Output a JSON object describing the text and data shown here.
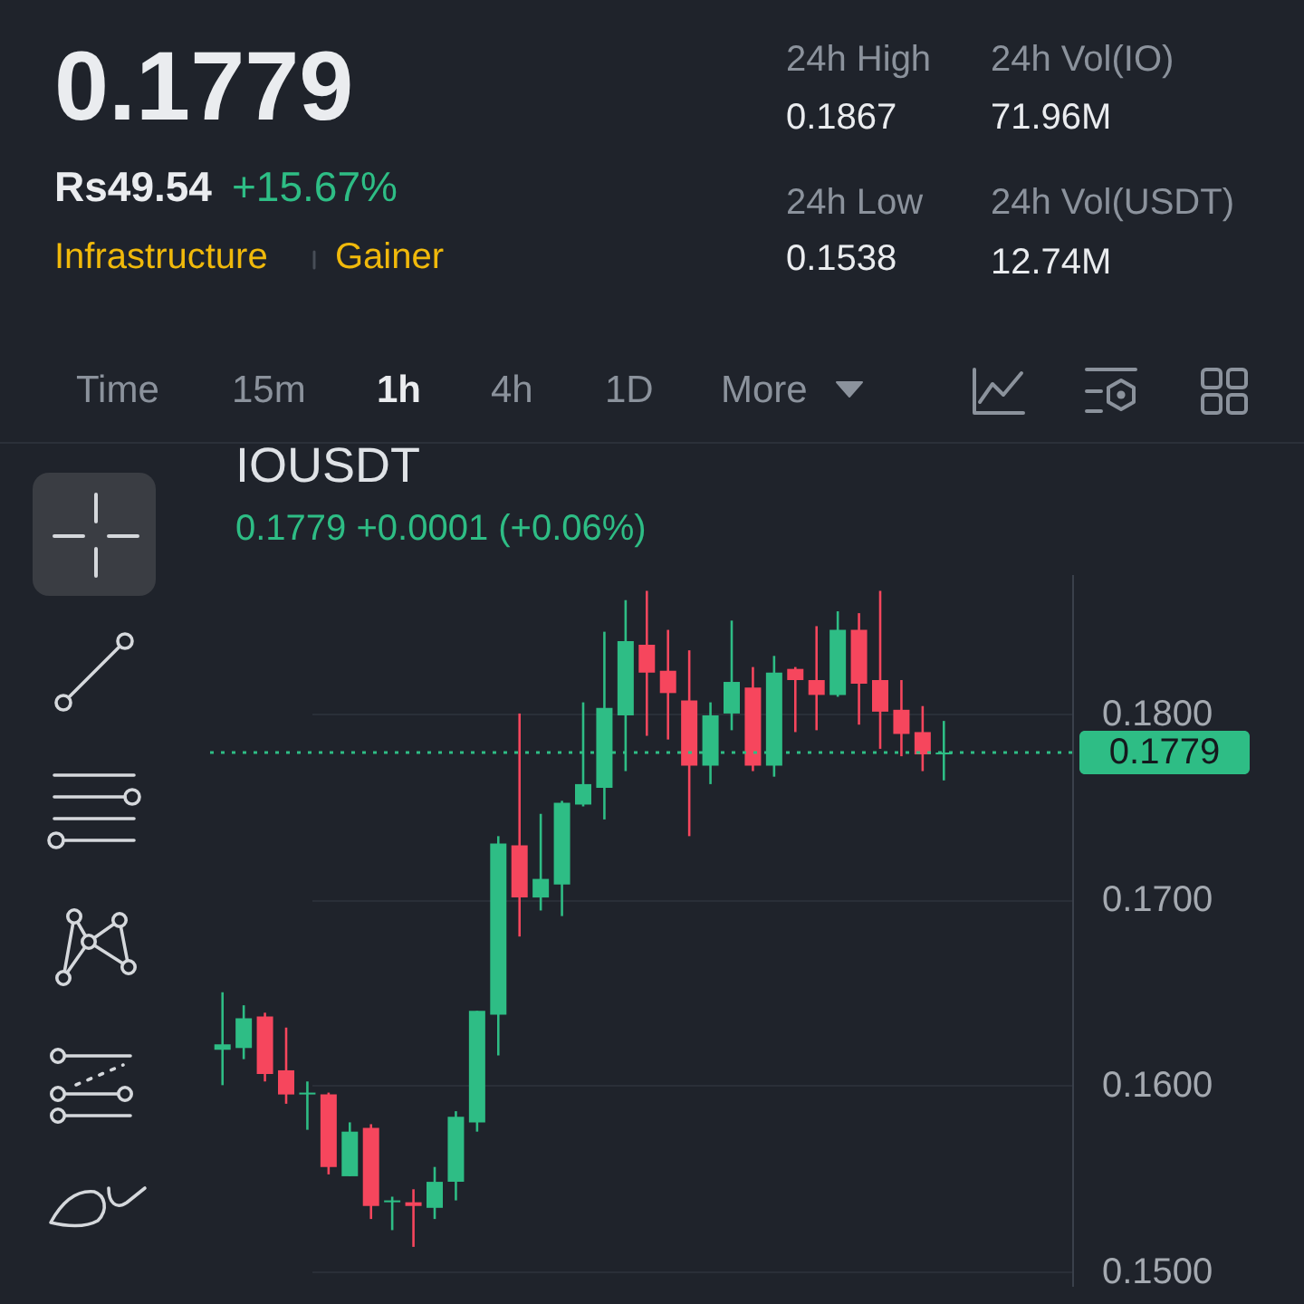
{
  "chart_data": [
    {
      "type": "other",
      "title": "0.1779",
      "annotations": [
        "Rs49.54",
        "+15.67%",
        "Infrastructure",
        "Gainer",
        "24h High",
        "0.1867",
        "24h Vol(IO)",
        "71.96M",
        "24h Low",
        "0.1538",
        "24h Vol(USDT)",
        "12.74M",
        "Time",
        "15m",
        "1h",
        "4h",
        "1D",
        "More"
      ]
    },
    {
      "type": "candlestick",
      "title": "IOUSDT",
      "subtitle": "0.1779 +0.0001 (+0.06%)",
      "categories": [
        null,
        null,
        null,
        null,
        null,
        null,
        null,
        null,
        null,
        null,
        null,
        null,
        null,
        null,
        null,
        null,
        null,
        null,
        null,
        null,
        null,
        null,
        null,
        null,
        null,
        null,
        null,
        null,
        null,
        null,
        null,
        null,
        null,
        null,
        null
      ],
      "ohlc": [
        [
          0.1619,
          0.165,
          0.16,
          0.1622
        ],
        [
          0.162,
          0.1643,
          0.1614,
          0.1636
        ],
        [
          0.1637,
          0.1639,
          0.1602,
          0.1606
        ],
        [
          0.1608,
          0.1631,
          0.159,
          0.1595
        ],
        [
          0.1595,
          0.1602,
          0.1576,
          0.1596
        ],
        [
          0.1595,
          0.1596,
          0.1552,
          0.1556
        ],
        [
          0.1551,
          0.158,
          0.1551,
          0.1575
        ],
        [
          0.1577,
          0.1579,
          0.1528,
          0.1535
        ],
        [
          0.1537,
          0.154,
          0.1522,
          0.1538
        ],
        [
          0.1537,
          0.1544,
          0.1513,
          0.1535
        ],
        [
          0.1534,
          0.1556,
          0.1528,
          0.1548
        ],
        [
          0.1548,
          0.1586,
          0.1538,
          0.1583
        ],
        [
          0.158,
          0.164,
          0.1575,
          0.164
        ],
        [
          0.1638,
          0.1734,
          0.1616,
          0.173
        ],
        [
          0.1729,
          0.18,
          0.168,
          0.1701
        ],
        [
          0.1701,
          0.1746,
          0.1694,
          0.1711
        ],
        [
          0.1708,
          0.1753,
          0.1691,
          0.1752
        ],
        [
          0.1751,
          0.1806,
          0.175,
          0.1762
        ],
        [
          0.176,
          0.1844,
          0.1743,
          0.1803
        ],
        [
          0.1799,
          0.1861,
          0.1769,
          0.1839
        ],
        [
          0.1837,
          0.1866,
          0.1788,
          0.1822
        ],
        [
          0.1823,
          0.1845,
          0.1786,
          0.1811
        ],
        [
          0.1807,
          0.1834,
          0.1734,
          0.1772
        ],
        [
          0.1772,
          0.1806,
          0.1762,
          0.1799
        ],
        [
          0.18,
          0.185,
          0.1791,
          0.1817
        ],
        [
          0.1814,
          0.1825,
          0.1769,
          0.1772
        ],
        [
          0.1772,
          0.1831,
          0.1766,
          0.1822
        ],
        [
          0.1824,
          0.1825,
          0.179,
          0.1818
        ],
        [
          0.1818,
          0.1847,
          0.1791,
          0.181
        ],
        [
          0.181,
          0.1855,
          0.1809,
          0.1845
        ],
        [
          0.1845,
          0.1854,
          0.1794,
          0.1816
        ],
        [
          0.1818,
          0.1866,
          0.1781,
          0.1801
        ],
        [
          0.1802,
          0.1818,
          0.1777,
          0.1789
        ],
        [
          0.179,
          0.1804,
          0.1769,
          0.1778
        ],
        [
          0.1778,
          0.1796,
          0.1764,
          0.1779
        ]
      ],
      "colors": [
        "#2ebd85",
        "#2ebd85",
        "#f6465d",
        "#f6465d",
        "#2ebd85",
        "#f6465d",
        "#2ebd85",
        "#f6465d",
        "#2ebd85",
        "#f6465d",
        "#2ebd85",
        "#2ebd85",
        "#2ebd85",
        "#2ebd85",
        "#f6465d",
        "#2ebd85",
        "#2ebd85",
        "#2ebd85",
        "#2ebd85",
        "#2ebd85",
        "#f6465d",
        "#f6465d",
        "#f6465d",
        "#2ebd85",
        "#2ebd85",
        "#f6465d",
        "#2ebd85",
        "#f6465d",
        "#f6465d",
        "#2ebd85",
        "#f6465d",
        "#f6465d",
        "#f6465d",
        "#f6465d",
        "#2ebd85"
      ],
      "ylim": [
        0.1492,
        0.1875
      ],
      "yticks": [
        {
          "value": 0.15,
          "label": "0.1500"
        },
        {
          "value": 0.16,
          "label": "0.1600"
        },
        {
          "value": 0.17,
          "label": "0.1700"
        },
        {
          "value": 0.18,
          "label": "0.1800"
        }
      ],
      "grid": "y",
      "ref_lines": [
        {
          "axis": "y",
          "value": 0.1779,
          "label": "0.1779",
          "color": "#2ebd85",
          "line_style": "dotted"
        }
      ]
    }
  ]
}
